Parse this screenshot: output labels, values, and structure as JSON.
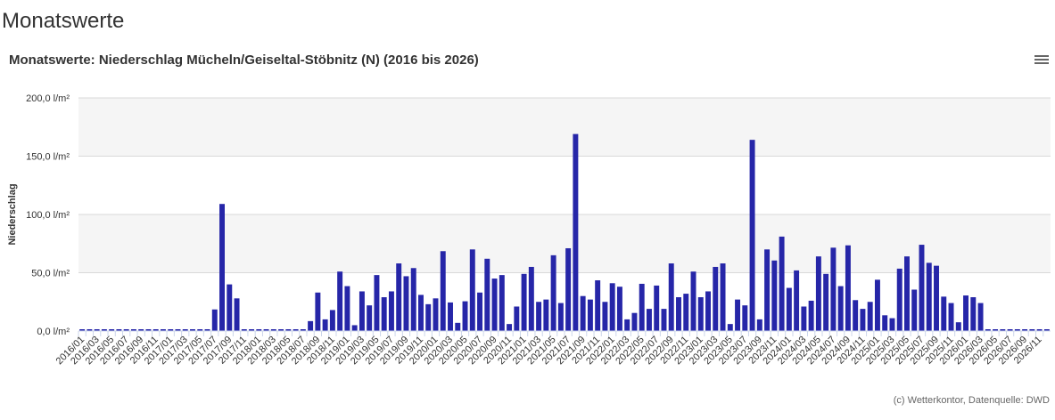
{
  "page": {
    "heading": "Monatswerte",
    "credit": "(c) Wetterkontor, Datenquelle: DWD",
    "menu_icon": "hamburger-icon"
  },
  "chart_data": {
    "type": "bar",
    "title": "Monatswerte: Niederschlag Mücheln/Geiseltal-Stöbnitz (N) (2016 bis 2026)",
    "ylabel": "Niederschlag",
    "ylim": [
      0,
      200
    ],
    "yticks": [
      "0,0 l/m²",
      "50,0 l/m²",
      "100,0 l/m²",
      "150,0 l/m²",
      "200,0 l/m²"
    ],
    "color": "#2626a8",
    "grid": true,
    "start": "2016/01",
    "values": [
      0,
      0,
      0,
      0,
      0,
      0,
      0,
      0,
      0,
      0,
      0,
      0,
      0,
      0,
      0,
      0,
      0,
      0,
      18.5,
      109,
      40,
      28,
      0,
      0,
      0,
      0,
      0,
      0,
      0,
      0,
      0,
      8.5,
      33,
      10,
      18,
      51,
      38.5,
      5,
      34,
      22,
      48,
      29,
      34,
      58,
      47,
      54,
      31,
      23,
      28,
      68.5,
      24.5,
      7,
      25.5,
      70,
      33,
      62,
      45,
      48,
      6,
      21,
      49,
      55,
      25,
      27,
      65,
      24,
      71,
      169,
      30,
      27,
      43.5,
      25,
      41,
      38,
      10,
      15.5,
      40.5,
      19,
      39,
      19,
      58,
      29,
      32,
      51,
      29,
      34,
      55,
      58,
      6,
      27,
      22,
      164,
      10,
      70,
      60.5,
      81,
      37,
      52,
      21,
      26,
      64,
      49,
      71.5,
      38.5,
      73.5,
      26.5,
      19,
      25,
      44,
      13.5,
      11,
      53.5,
      64,
      35.5,
      74,
      58.5,
      56,
      29.5,
      24,
      7.5,
      30.5,
      29,
      24,
      0.3,
      0,
      0,
      0,
      0,
      0,
      0,
      0,
      0
    ]
  }
}
